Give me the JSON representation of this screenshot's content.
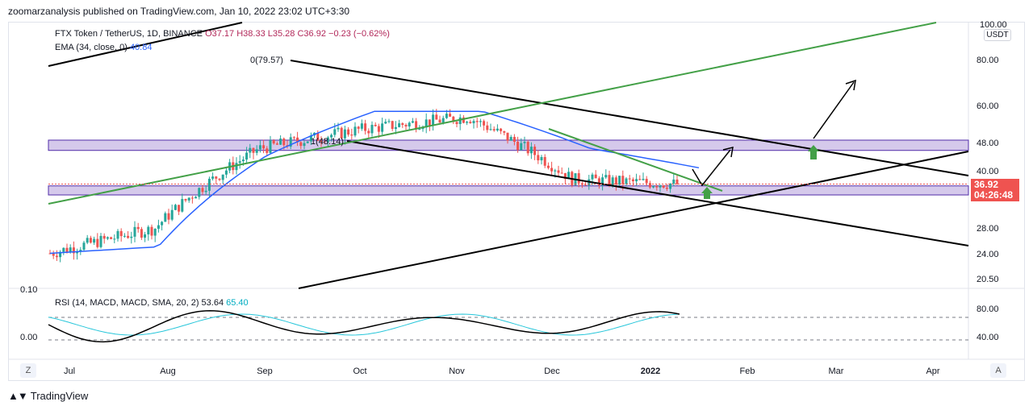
{
  "publisher_line": "zoomarzanalysis published on TradingView.com, Jan 10, 2022 23:02 UTC+3:30",
  "legend": {
    "symbol": "FTX Token / TetherUS, 1D, BINANCE",
    "open": "O37.17",
    "high": "H38.33",
    "low": "L35.28",
    "close": "C36.92",
    "change": "−0.23 (−0.62%)",
    "ema_label": "EMA (34, close, 0)",
    "ema_value": "40.84",
    "rsi_label": "RSI (14, MACD, MACD, SMA, 20, 2)",
    "rsi_value1": "53.64",
    "rsi_value2": "65.40"
  },
  "annotations": {
    "fib_high": "0(79.57)",
    "fib_low": "1(48.14)"
  },
  "price_axis": {
    "currency": "USDT",
    "labels": [
      "100.00",
      "80.00",
      "60.00",
      "48.00",
      "40.00",
      "28.00",
      "24.00",
      "20.50"
    ],
    "last_price": "36.92",
    "countdown": "04:26:48"
  },
  "rsi_axis": {
    "labels": [
      "80.00",
      "40.00"
    ],
    "left_labels": [
      "0.10",
      "0.00"
    ]
  },
  "time_axis": {
    "labels": [
      "Jul",
      "Aug",
      "Sep",
      "Oct",
      "Nov",
      "Dec",
      "2022",
      "Feb",
      "Mar",
      "Apr"
    ]
  },
  "footer": {
    "brand": "TradingView"
  },
  "buttons": {
    "zoom_left": "Z",
    "zoom_right": "A"
  },
  "colors": {
    "up_candle": "#26a69a",
    "down_candle": "#ef5350",
    "ema": "#2962ff",
    "zone_fill": "#b39ddb",
    "zone_stroke": "#512da8",
    "green_line": "#43a047",
    "trend_line": "#000000",
    "rsi_line": "#000000",
    "rsi_signal": "#26c6da",
    "arrow_green": "#43a047"
  },
  "chart_data": {
    "type": "candlestick",
    "ylim": [
      20.5,
      100
    ],
    "y_scale": "log",
    "series": [
      {
        "name": "EMA (34, close, 0)",
        "x": [
          "Jul",
          "Aug",
          "Sep",
          "Oct",
          "Nov",
          "Dec",
          "2022"
        ],
        "values": [
          24,
          25,
          44,
          58,
          58,
          46,
          40.84
        ]
      }
    ],
    "price_path": {
      "x": [
        "Jul",
        "Aug",
        "Sep",
        "Oct",
        "Nov",
        "Dec",
        "2022"
      ],
      "values": [
        24,
        28,
        46,
        52,
        56,
        38,
        36.92
      ]
    },
    "zones": [
      {
        "from": 45.5,
        "to": 48.5
      },
      {
        "from": 34.5,
        "to": 36.5
      }
    ],
    "last_close": 36.92
  }
}
